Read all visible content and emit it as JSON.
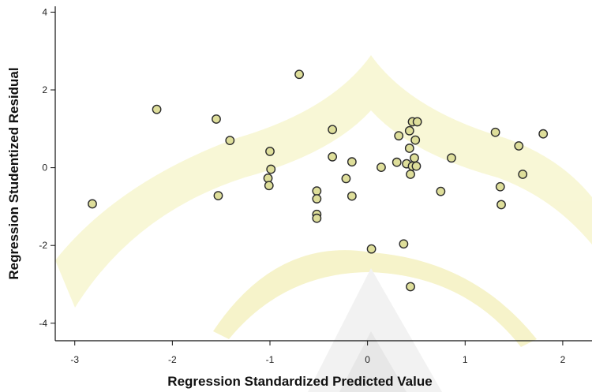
{
  "chart_data": {
    "type": "scatter",
    "xlabel": "Regression Standardized Predicted Value",
    "ylabel": "Regression Studentized Residual",
    "xlim": [
      -3.2,
      2.3
    ],
    "ylim": [
      -4.45,
      4.15
    ],
    "xticks": [
      "-3",
      "-2",
      "-1",
      "0",
      "1",
      "2"
    ],
    "yticks": [
      "4",
      "2",
      "0",
      "-2",
      "-4"
    ],
    "xtick_values": [
      -3,
      -2,
      -1,
      0,
      1,
      2
    ],
    "ytick_values": [
      4,
      2,
      0,
      -2,
      -4
    ],
    "grid": false,
    "point_color": "#dede9a",
    "point_stroke": "#2b2b2b",
    "points": [
      {
        "x": -2.82,
        "y": -0.93
      },
      {
        "x": -2.16,
        "y": 1.5
      },
      {
        "x": -1.55,
        "y": 1.25
      },
      {
        "x": -1.53,
        "y": -0.72
      },
      {
        "x": -1.41,
        "y": 0.7
      },
      {
        "x": -1.0,
        "y": 0.42
      },
      {
        "x": -1.02,
        "y": -0.27
      },
      {
        "x": -1.01,
        "y": -0.46
      },
      {
        "x": -0.99,
        "y": -0.04
      },
      {
        "x": -0.7,
        "y": 2.4
      },
      {
        "x": -0.52,
        "y": -0.6
      },
      {
        "x": -0.52,
        "y": -0.8
      },
      {
        "x": -0.52,
        "y": -1.2
      },
      {
        "x": -0.52,
        "y": -1.3
      },
      {
        "x": -0.36,
        "y": 0.98
      },
      {
        "x": -0.36,
        "y": 0.28
      },
      {
        "x": -0.22,
        "y": -0.28
      },
      {
        "x": -0.16,
        "y": 0.15
      },
      {
        "x": -0.16,
        "y": -0.73
      },
      {
        "x": 0.04,
        "y": -2.09
      },
      {
        "x": 0.14,
        "y": 0.01
      },
      {
        "x": 0.3,
        "y": 0.14
      },
      {
        "x": 0.32,
        "y": 0.82
      },
      {
        "x": 0.37,
        "y": -1.96
      },
      {
        "x": 0.4,
        "y": 0.1
      },
      {
        "x": 0.43,
        "y": 0.5
      },
      {
        "x": 0.43,
        "y": 0.95
      },
      {
        "x": 0.44,
        "y": -0.17
      },
      {
        "x": 0.44,
        "y": -3.06
      },
      {
        "x": 0.46,
        "y": 0.04
      },
      {
        "x": 0.46,
        "y": 1.18
      },
      {
        "x": 0.48,
        "y": 0.25
      },
      {
        "x": 0.49,
        "y": 0.71
      },
      {
        "x": 0.5,
        "y": 0.04
      },
      {
        "x": 0.51,
        "y": 1.18
      },
      {
        "x": 0.75,
        "y": -0.61
      },
      {
        "x": 0.86,
        "y": 0.25
      },
      {
        "x": 1.31,
        "y": 0.91
      },
      {
        "x": 1.36,
        "y": -0.49
      },
      {
        "x": 1.37,
        "y": -0.95
      },
      {
        "x": 1.55,
        "y": 0.56
      },
      {
        "x": 1.59,
        "y": -0.17
      },
      {
        "x": 1.8,
        "y": 0.87
      }
    ]
  }
}
